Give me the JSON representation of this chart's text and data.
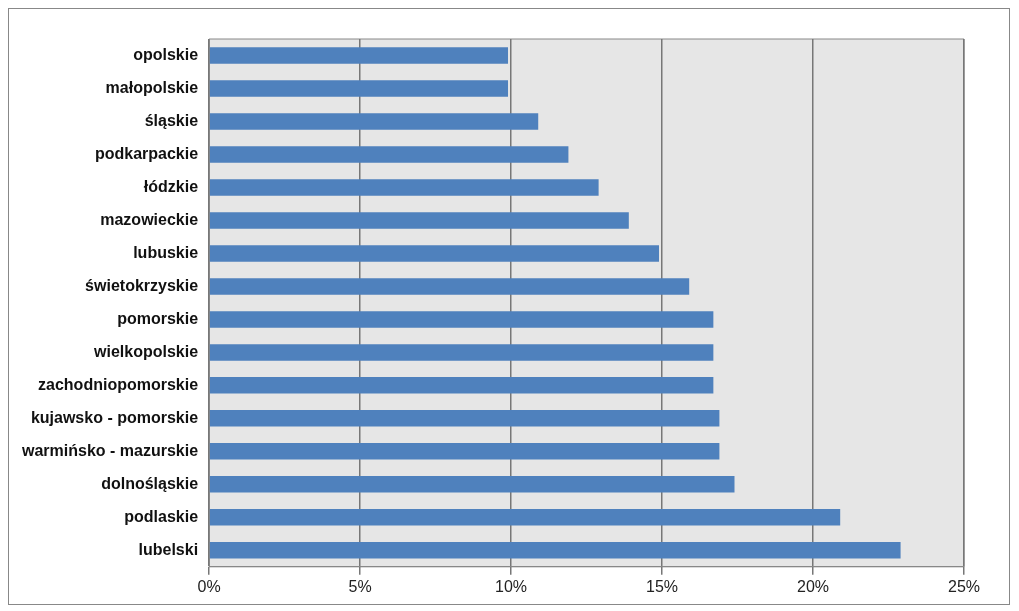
{
  "chart_data": {
    "type": "bar",
    "orientation": "horizontal",
    "categories": [
      "opolskie",
      "małopolskie",
      "śląskie",
      "podkarpackie",
      "łódzkie",
      "mazowieckie",
      "lubuskie",
      "świetokrzyskie",
      "pomorskie",
      "wielkopolskie",
      "zachodniopomorskie",
      "kujawsko - pomorskie",
      "warmińsko - mazurskie",
      "dolnośląskie",
      "podlaskie",
      "lubelski"
    ],
    "values": [
      9.9,
      9.9,
      10.9,
      11.9,
      12.9,
      13.9,
      14.9,
      15.9,
      16.7,
      16.7,
      16.7,
      16.9,
      16.9,
      17.4,
      20.9,
      22.9
    ],
    "color": "#4f81bd",
    "xlim": [
      0,
      25
    ],
    "xticks": [
      {
        "value": 0,
        "label": "0%"
      },
      {
        "value": 5,
        "label": "5%"
      },
      {
        "value": 10,
        "label": "10%"
      },
      {
        "value": 15,
        "label": "15%"
      },
      {
        "value": 20,
        "label": "20%"
      },
      {
        "value": 25,
        "label": "25%"
      }
    ],
    "grid": "x",
    "legend": false
  }
}
